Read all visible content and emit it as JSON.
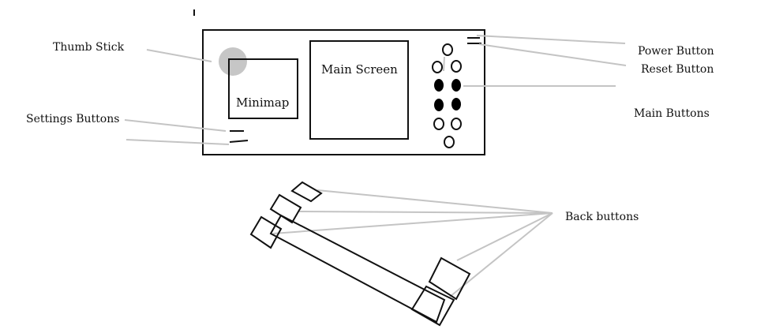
{
  "labels": {
    "thumb_stick": "Thumb Stick",
    "minimap": "Minimap",
    "main_screen": "Main Screen",
    "settings_buttons": "Settings Buttons",
    "power_button": "Power Button",
    "reset_button": "Reset Button",
    "main_buttons": "Main Buttons",
    "back_buttons": "Back buttons"
  },
  "colors": {
    "outline": "#111111",
    "leader_line": "#c4c4c4",
    "thumb_stick_fill": "#c6c6c6",
    "filled_button": "#000000"
  }
}
